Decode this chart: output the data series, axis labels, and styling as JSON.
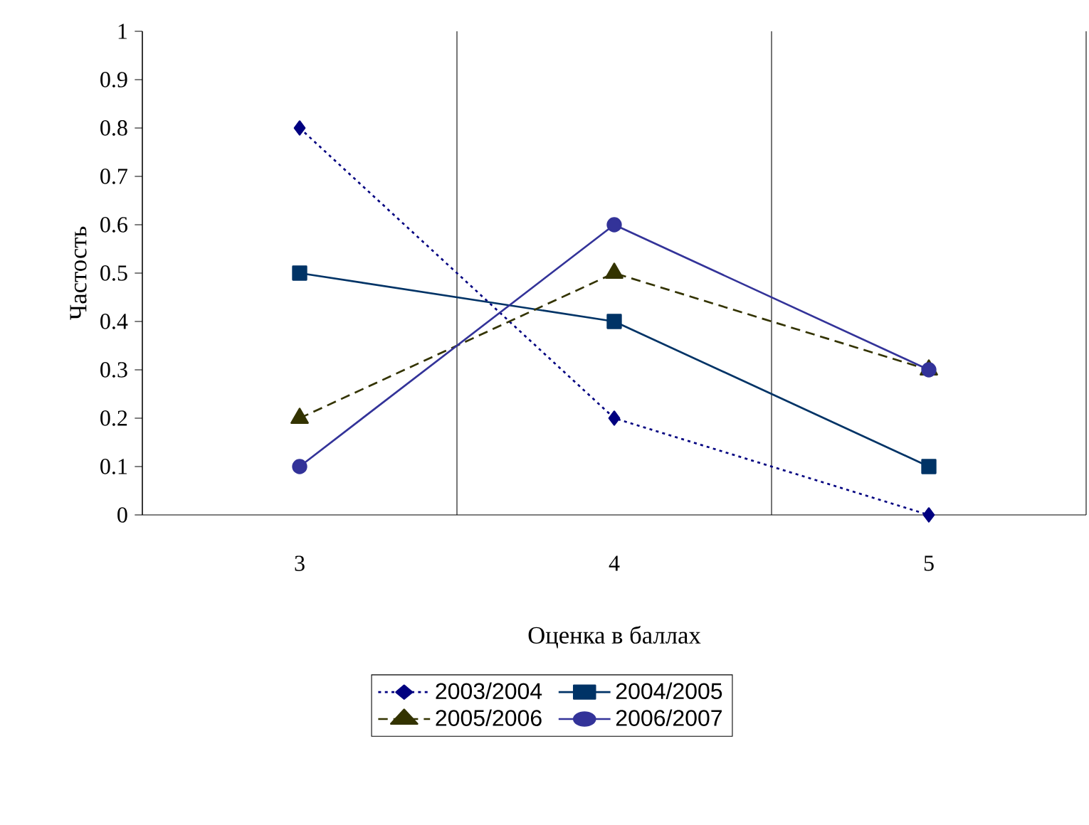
{
  "chart_data": {
    "type": "line",
    "xlabel": "Оценка в баллах",
    "ylabel": "Частость",
    "categories": [
      "3",
      "4",
      "5"
    ],
    "ylim": [
      0,
      1
    ],
    "yticks": [
      0,
      0.1,
      0.2,
      0.3,
      0.4,
      0.5,
      0.6,
      0.7,
      0.8,
      0.9,
      1
    ],
    "grid": "x",
    "legend": "bottom",
    "series": [
      {
        "name": "2003/2004",
        "color": "#000080",
        "marker": "diamond",
        "line_style": "dotted",
        "values": [
          0.8,
          0.2,
          0
        ]
      },
      {
        "name": "2004/2005",
        "color": "#003366",
        "marker": "square",
        "line_style": "solid",
        "values": [
          0.5,
          0.4,
          0.1
        ]
      },
      {
        "name": "2005/2006",
        "color": "#333300",
        "marker": "triangle",
        "line_style": "dashed",
        "values": [
          0.2,
          0.5,
          0.3
        ]
      },
      {
        "name": "2006/2007",
        "color": "#333399",
        "marker": "circle",
        "line_style": "solid",
        "values": [
          0.1,
          0.6,
          0.3
        ]
      }
    ]
  }
}
